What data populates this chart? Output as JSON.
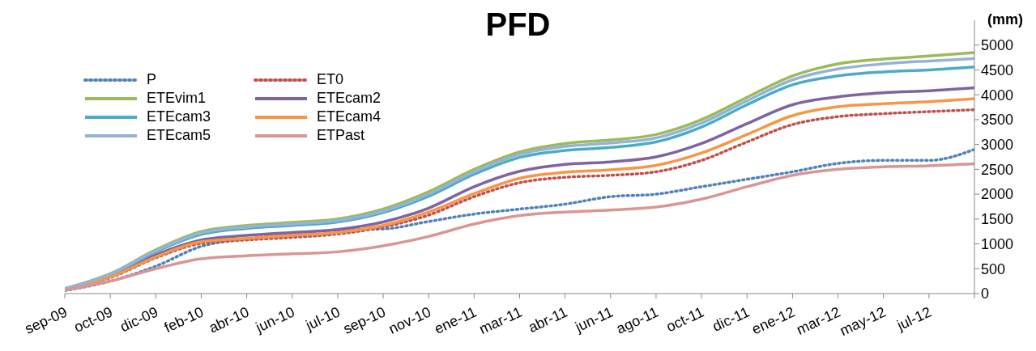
{
  "chart_data": {
    "type": "line",
    "title": "PFD",
    "ylabel": "(mm)",
    "categories": [
      "sep-09",
      "oct-09",
      "dic-09",
      "feb-10",
      "abr-10",
      "jun-10",
      "jul-10",
      "sep-10",
      "nov-10",
      "ene-11",
      "mar-11",
      "abr-11",
      "jun-11",
      "ago-11",
      "oct-11",
      "dic-11",
      "ene-12",
      "mar-12",
      "may-12",
      "jul-12",
      null
    ],
    "ylim": [
      0,
      5500
    ],
    "yticks": [
      0,
      500,
      1000,
      1500,
      2000,
      2500,
      3000,
      3500,
      4000,
      4500,
      5000
    ],
    "grid": false,
    "legend": "top left",
    "marker": "none",
    "series": [
      {
        "name": "P",
        "color": "#4f81bd",
        "line_style": "dotted",
        "values": [
          60,
          250,
          550,
          950,
          1100,
          1200,
          1280,
          1300,
          1450,
          1600,
          1700,
          1800,
          1950,
          2000,
          2150,
          2300,
          2450,
          2620,
          2680,
          2680,
          2900
        ]
      },
      {
        "name": "ET0",
        "color": "#c0504d",
        "line_style": "dotted",
        "values": [
          80,
          320,
          720,
          1010,
          1080,
          1130,
          1200,
          1340,
          1580,
          1950,
          2230,
          2340,
          2380,
          2450,
          2680,
          3050,
          3400,
          3560,
          3620,
          3660,
          3700
        ]
      },
      {
        "name": "ETEvim1",
        "color": "#9bbb59",
        "line_style": "solid",
        "values": [
          100,
          400,
          880,
          1250,
          1370,
          1430,
          1500,
          1700,
          2050,
          2500,
          2850,
          3020,
          3090,
          3200,
          3500,
          3950,
          4380,
          4620,
          4720,
          4780,
          4850
        ]
      },
      {
        "name": "ETEcam2",
        "color": "#8064a2",
        "line_style": "solid",
        "values": [
          80,
          350,
          780,
          1080,
          1170,
          1230,
          1290,
          1440,
          1720,
          2150,
          2460,
          2600,
          2650,
          2750,
          3020,
          3420,
          3800,
          3960,
          4040,
          4080,
          4140
        ]
      },
      {
        "name": "ETEcam3",
        "color": "#4bacc6",
        "line_style": "solid",
        "values": [
          90,
          380,
          840,
          1190,
          1310,
          1370,
          1440,
          1630,
          1960,
          2400,
          2740,
          2880,
          2940,
          3050,
          3350,
          3800,
          4200,
          4380,
          4460,
          4500,
          4560
        ]
      },
      {
        "name": "ETEcam4",
        "color": "#f79646",
        "line_style": "solid",
        "values": [
          80,
          330,
          740,
          1040,
          1110,
          1170,
          1230,
          1370,
          1640,
          2010,
          2320,
          2440,
          2490,
          2580,
          2830,
          3200,
          3580,
          3760,
          3820,
          3860,
          3920
        ]
      },
      {
        "name": "ETEcam5",
        "color": "#95b3d7",
        "line_style": "solid",
        "values": [
          100,
          390,
          860,
          1220,
          1340,
          1400,
          1470,
          1660,
          2000,
          2450,
          2800,
          2960,
          3030,
          3130,
          3430,
          3880,
          4300,
          4520,
          4620,
          4680,
          4730
        ]
      },
      {
        "name": "ETPast",
        "color": "#d99694",
        "line_style": "solid",
        "values": [
          70,
          250,
          500,
          700,
          760,
          800,
          840,
          960,
          1150,
          1400,
          1570,
          1640,
          1680,
          1740,
          1900,
          2150,
          2380,
          2500,
          2550,
          2570,
          2610
        ]
      }
    ]
  }
}
